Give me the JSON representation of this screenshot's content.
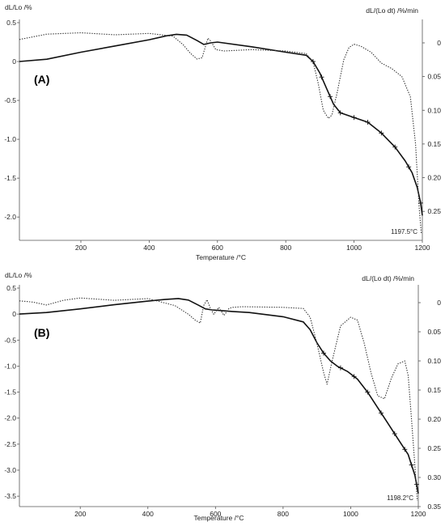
{
  "chart_data": [
    {
      "type": "line",
      "panel_label": "(A)",
      "annotation": "1197.5°C",
      "xlabel": "Temperature /°C",
      "ylabel_left": "dL/Lo /%",
      "ylabel_right": "dL/(Lo dt) /%/min",
      "xlim": [
        20,
        1200
      ],
      "ylim_left": [
        -2.3,
        0.5
      ],
      "ylim_right": [
        -0.293,
        0.03
      ],
      "x_ticks": [
        "200",
        "400",
        "600",
        "800",
        "1000",
        "1200"
      ],
      "y_left_ticks": [
        "0.5",
        "0",
        "-0.5",
        "-1.0",
        "-1.5",
        "-2.0"
      ],
      "y_right_ticks": [
        "0",
        "0.05",
        "0.10",
        "0.15",
        "0.20",
        "0.25"
      ],
      "series": [
        {
          "axis": "left",
          "style": "solid",
          "x": [
            20,
            100,
            200,
            300,
            400,
            450,
            480,
            510,
            540,
            560,
            580,
            600,
            700,
            800,
            860,
            880,
            900,
            920,
            940,
            960,
            1000,
            1040,
            1080,
            1120,
            1150,
            1170,
            1185,
            1195,
            1200
          ],
          "y": [
            0.0,
            0.03,
            0.12,
            0.2,
            0.28,
            0.33,
            0.35,
            0.34,
            0.27,
            0.22,
            0.24,
            0.25,
            0.19,
            0.12,
            0.08,
            0.0,
            -0.15,
            -0.35,
            -0.55,
            -0.66,
            -0.72,
            -0.78,
            -0.92,
            -1.1,
            -1.28,
            -1.43,
            -1.62,
            -1.82,
            -1.98
          ]
        },
        {
          "axis": "right",
          "style": "dotted",
          "x": [
            20,
            100,
            200,
            300,
            400,
            470,
            500,
            520,
            540,
            555,
            565,
            572,
            580,
            595,
            620,
            700,
            800,
            860,
            880,
            895,
            910,
            925,
            935,
            950,
            970,
            985,
            1000,
            1020,
            1050,
            1080,
            1110,
            1140,
            1165,
            1180,
            1190,
            1197
          ],
          "y": [
            0.005,
            0.013,
            0.015,
            0.012,
            0.014,
            0.01,
            -0.003,
            -0.015,
            -0.024,
            -0.022,
            -0.005,
            0.007,
            0.003,
            -0.01,
            -0.012,
            -0.01,
            -0.012,
            -0.016,
            -0.028,
            -0.06,
            -0.1,
            -0.112,
            -0.107,
            -0.075,
            -0.025,
            -0.007,
            -0.002,
            -0.005,
            -0.014,
            -0.03,
            -0.038,
            -0.05,
            -0.08,
            -0.15,
            -0.24,
            -0.283
          ]
        }
      ],
      "markers": {
        "series": 0,
        "x": [
          880,
          905,
          930,
          960,
          1000,
          1040,
          1080,
          1120,
          1160,
          1195
        ]
      }
    },
    {
      "type": "line",
      "panel_label": "(B)",
      "annotation": "1198.2°C",
      "xlabel": "Temperature /°C",
      "ylabel_left": "dL/Lo /%",
      "ylabel_right": "dL/(Lo dt) /%/min",
      "xlim": [
        20,
        1200
      ],
      "ylim_left": [
        -3.7,
        0.5
      ],
      "ylim_right": [
        -0.35,
        0.025
      ],
      "x_ticks": [
        "200",
        "400",
        "600",
        "800",
        "1000",
        "1200"
      ],
      "y_left_ticks": [
        "0.5",
        "0",
        "-0.5",
        "-1.0",
        "-1.5",
        "-2.0",
        "-2.5",
        "-3.0",
        "-3.5"
      ],
      "y_right_ticks": [
        "0",
        "0.05",
        "0.10",
        "0.15",
        "0.20",
        "0.25",
        "0.30",
        "0.35"
      ],
      "series": [
        {
          "axis": "left",
          "style": "solid",
          "x": [
            20,
            100,
            200,
            300,
            400,
            450,
            490,
            520,
            550,
            570,
            590,
            610,
            650,
            700,
            800,
            860,
            880,
            900,
            920,
            940,
            960,
            990,
            1020,
            1050,
            1080,
            1110,
            1140,
            1170,
            1190,
            1200
          ],
          "y": [
            0.0,
            0.03,
            0.1,
            0.18,
            0.25,
            0.28,
            0.3,
            0.27,
            0.17,
            0.1,
            0.08,
            0.07,
            0.05,
            0.03,
            -0.05,
            -0.15,
            -0.3,
            -0.55,
            -0.75,
            -0.9,
            -1.0,
            -1.1,
            -1.25,
            -1.5,
            -1.8,
            -2.1,
            -2.4,
            -2.7,
            -3.1,
            -3.45
          ]
        },
        {
          "axis": "right",
          "style": "dotted",
          "x": [
            20,
            60,
            100,
            150,
            200,
            300,
            400,
            480,
            520,
            540,
            555,
            565,
            575,
            585,
            595,
            610,
            625,
            640,
            650,
            680,
            800,
            860,
            880,
            900,
            920,
            930,
            945,
            970,
            1000,
            1020,
            1040,
            1060,
            1080,
            1100,
            1120,
            1140,
            1160,
            1170,
            1180,
            1190,
            1197
          ],
          "y": [
            0.003,
            0.001,
            -0.004,
            0.004,
            0.008,
            0.004,
            0.007,
            -0.005,
            -0.02,
            -0.03,
            -0.035,
            -0.005,
            0.005,
            -0.01,
            -0.02,
            -0.008,
            -0.022,
            -0.01,
            -0.008,
            -0.007,
            -0.008,
            -0.01,
            -0.025,
            -0.07,
            -0.12,
            -0.14,
            -0.1,
            -0.04,
            -0.025,
            -0.03,
            -0.07,
            -0.12,
            -0.16,
            -0.165,
            -0.13,
            -0.105,
            -0.1,
            -0.125,
            -0.2,
            -0.28,
            -0.34
          ]
        }
      ],
      "markers": {
        "series": 0,
        "x": [
          920,
          970,
          1010,
          1050,
          1090,
          1130,
          1160,
          1180,
          1195
        ]
      }
    }
  ]
}
